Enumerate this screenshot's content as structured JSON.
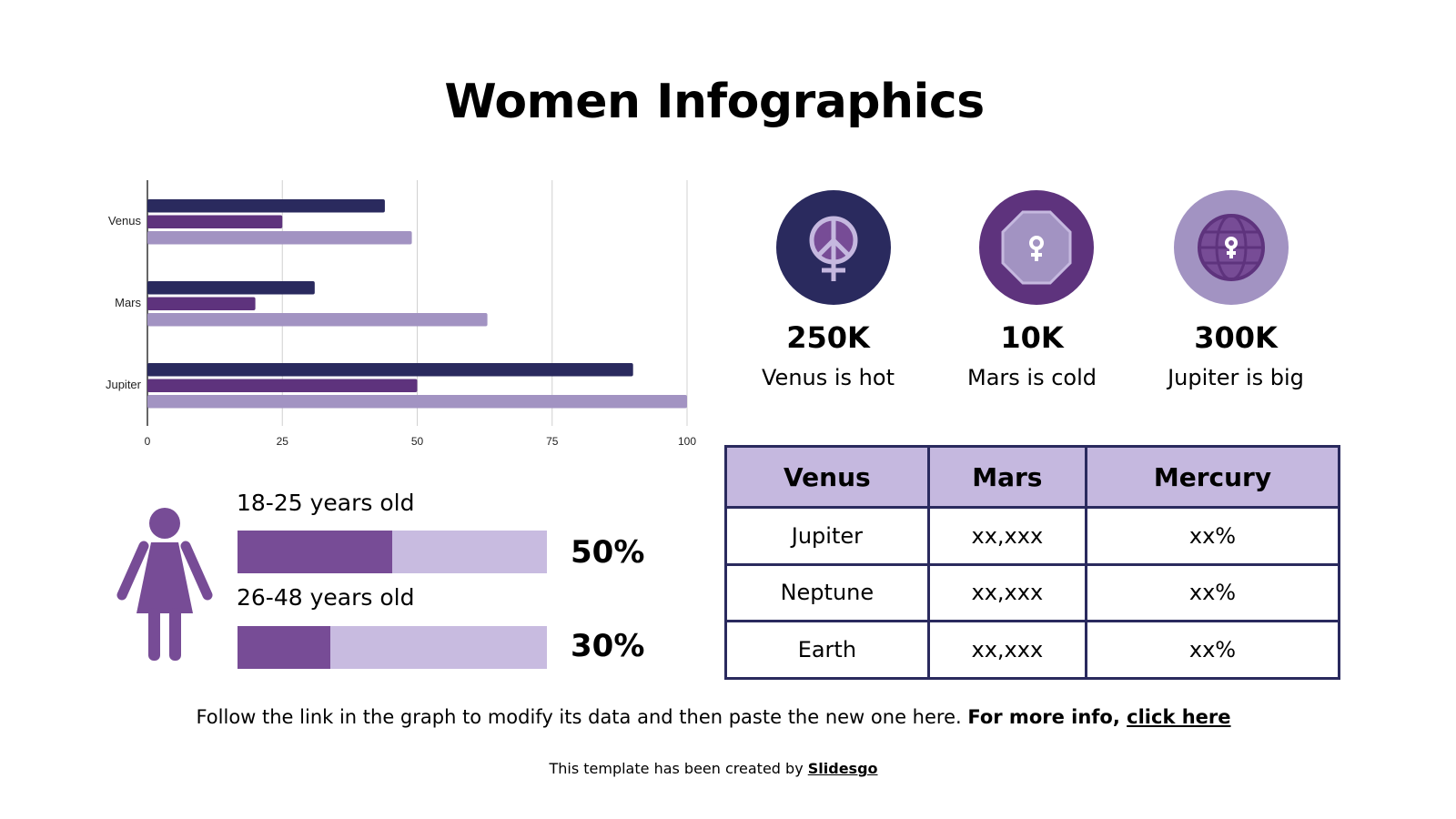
{
  "title": "Women Infographics",
  "chart_data": {
    "type": "bar",
    "orientation": "horizontal",
    "categories": [
      "Venus",
      "Mars",
      "Jupiter"
    ],
    "series": [
      {
        "values": [
          44,
          31,
          90
        ],
        "color": "#2a2a5e"
      },
      {
        "values": [
          25,
          20,
          50
        ],
        "color": "#5e337d"
      },
      {
        "values": [
          49,
          63,
          100
        ],
        "color": "#a293c2"
      }
    ],
    "xlim": [
      0,
      100
    ],
    "xticks": [
      "0",
      "25",
      "50",
      "75",
      "100"
    ],
    "grid": true
  },
  "stats": [
    {
      "value": "250K",
      "label": "Venus is hot",
      "icon": "peace-female-icon",
      "color": "#2a2a5e"
    },
    {
      "value": "10K",
      "label": "Mars is cold",
      "icon": "octagon-female-icon",
      "color": "#5e337d"
    },
    {
      "value": "300K",
      "label": "Jupiter is big",
      "icon": "globe-female-icon",
      "color": "#a293c2"
    }
  ],
  "table": {
    "headers": [
      "Venus",
      "Mars",
      "Mercury"
    ],
    "rows": [
      [
        "Jupiter",
        "xx,xxx",
        "xx%"
      ],
      [
        "Neptune",
        "xx,xxx",
        "xx%"
      ],
      [
        "Earth",
        "xx,xxx",
        "xx%"
      ]
    ]
  },
  "progress": [
    {
      "label": "18-25 years old",
      "value": 50,
      "text": "50%"
    },
    {
      "label": "26-48 years old",
      "value": 30,
      "text": "30%"
    }
  ],
  "footer": {
    "text": "Follow the link in the graph to modify its data and then paste the new one here. ",
    "bold": "For more info, ",
    "link": "click here"
  },
  "credit": {
    "text": "This template has been created by ",
    "link": "Slidesgo"
  }
}
